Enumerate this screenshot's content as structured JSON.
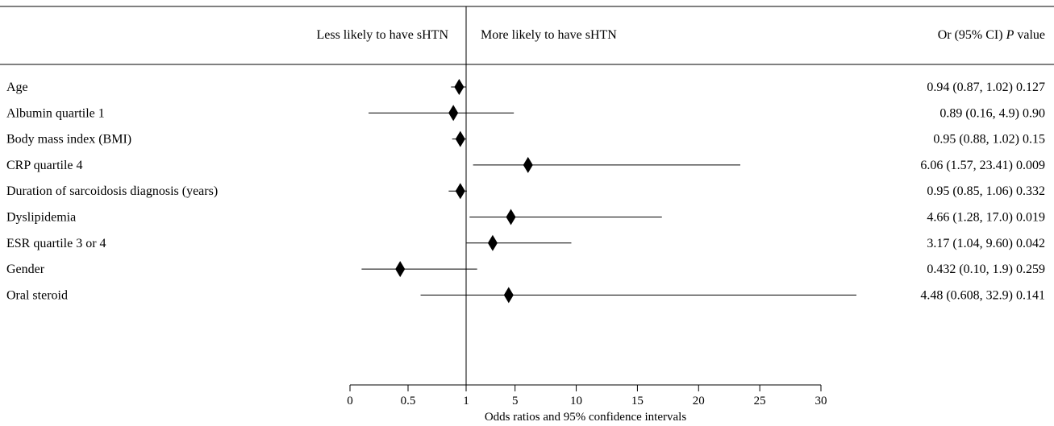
{
  "chart_data": {
    "type": "forest",
    "header_left": "Less likely to have sHTN",
    "header_mid": "More likely to have sHTN",
    "header_right": {
      "prefix": "Or (95% CI) ",
      "italic": "P",
      "suffix": " value"
    },
    "xlabel": "Odds ratios and 95% confidence intervals",
    "x_ticks": [
      "0",
      "0.5",
      "1",
      "5",
      "10",
      "15",
      "20",
      "25",
      "30"
    ],
    "reference_line": 1,
    "rows": [
      {
        "label": "Age",
        "or": 0.94,
        "lo": 0.87,
        "hi": 1.02,
        "text": "0.94 (0.87, 1.02) 0.127"
      },
      {
        "label": "Albumin quartile 1",
        "or": 0.89,
        "lo": 0.16,
        "hi": 4.9,
        "text": "0.89 (0.16, 4.9) 0.90"
      },
      {
        "label": "Body mass index (BMI)",
        "or": 0.95,
        "lo": 0.88,
        "hi": 1.02,
        "text": "0.95 (0.88, 1.02) 0.15"
      },
      {
        "label": "CRP quartile 4",
        "or": 6.06,
        "lo": 1.57,
        "hi": 23.41,
        "text": "6.06 (1.57, 23.41) 0.009"
      },
      {
        "label": "Duration of sarcoidosis diagnosis (years)",
        "or": 0.95,
        "lo": 0.85,
        "hi": 1.06,
        "text": "0.95 (0.85, 1.06) 0.332"
      },
      {
        "label": "Dyslipidemia",
        "or": 4.66,
        "lo": 1.28,
        "hi": 17.0,
        "text": "4.66 (1.28, 17.0) 0.019"
      },
      {
        "label": "ESR quartile 3 or 4",
        "or": 3.17,
        "lo": 1.04,
        "hi": 9.6,
        "text": "3.17 (1.04, 9.60) 0.042"
      },
      {
        "label": "Gender",
        "or": 0.432,
        "lo": 0.1,
        "hi": 1.9,
        "text": "0.432 (0.10, 1.9) 0.259"
      },
      {
        "label": "Oral steroid",
        "or": 4.48,
        "lo": 0.608,
        "hi": 32.9,
        "text": "4.48 (0.608, 32.9) 0.141"
      }
    ]
  }
}
